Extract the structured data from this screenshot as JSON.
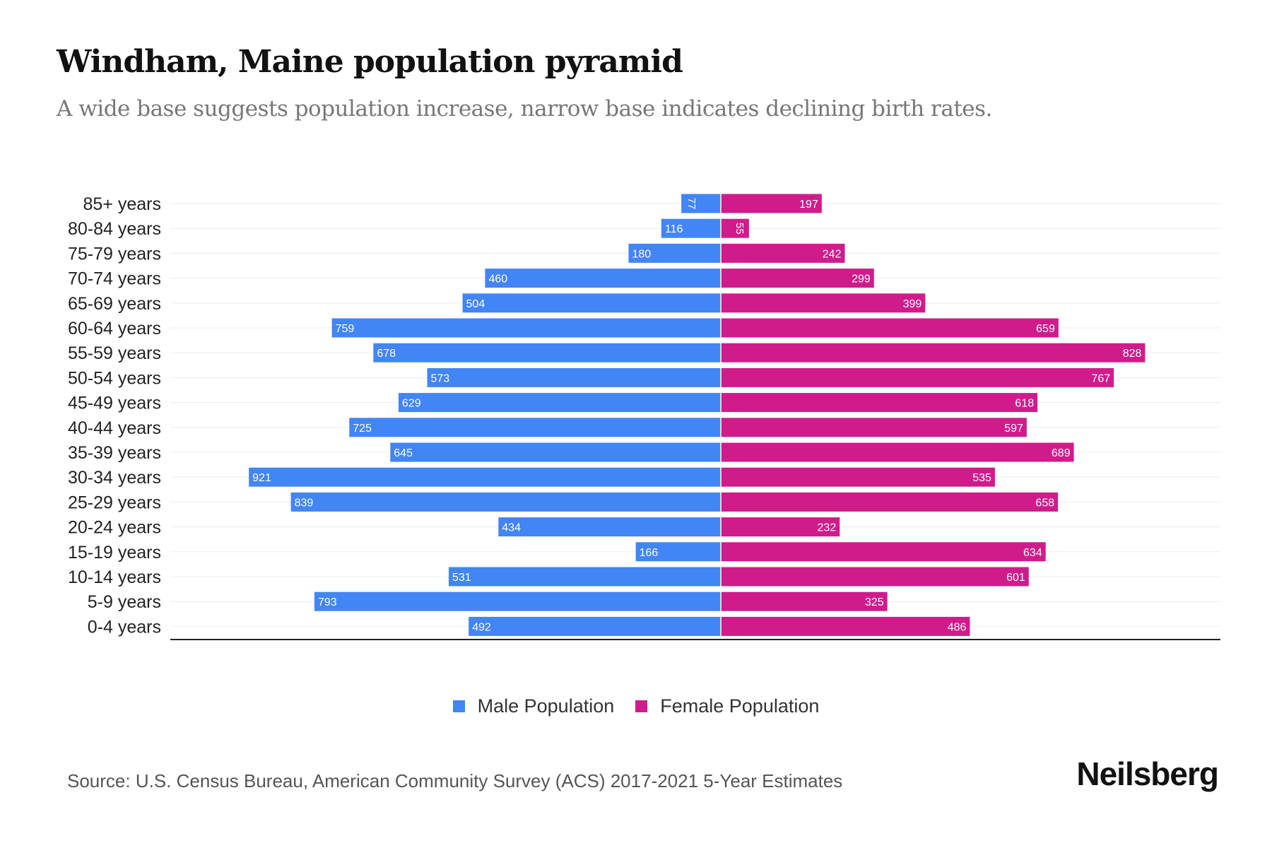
{
  "title": "Windham, Maine population pyramid",
  "subtitle": "A wide base suggests population increase, narrow base indicates declining birth rates.",
  "source": "Source: U.S. Census Bureau, American Community Survey (ACS) 2017-2021 5-Year Estimates",
  "logo": "Neilsberg",
  "chart_data": {
    "type": "bar",
    "orientation": "horizontal-pyramid",
    "categories": [
      "85+ years",
      "80-84 years",
      "75-79 years",
      "70-74 years",
      "65-69 years",
      "60-64 years",
      "55-59 years",
      "50-54 years",
      "45-49 years",
      "40-44 years",
      "35-39 years",
      "30-34 years",
      "25-29 years",
      "20-24 years",
      "15-19 years",
      "10-14 years",
      "5-9 years",
      "0-4 years"
    ],
    "series": [
      {
        "name": "Male Population",
        "color": "#4285f4",
        "values": [
          77,
          116,
          180,
          460,
          504,
          759,
          678,
          573,
          629,
          725,
          645,
          921,
          839,
          434,
          166,
          531,
          793,
          492
        ]
      },
      {
        "name": "Female Population",
        "color": "#d01c8b",
        "values": [
          197,
          55,
          242,
          299,
          399,
          659,
          828,
          767,
          618,
          597,
          689,
          535,
          658,
          232,
          634,
          601,
          325,
          486
        ]
      }
    ],
    "xlim": [
      -975,
      975
    ],
    "grid": true,
    "legend": "bottom-center"
  }
}
